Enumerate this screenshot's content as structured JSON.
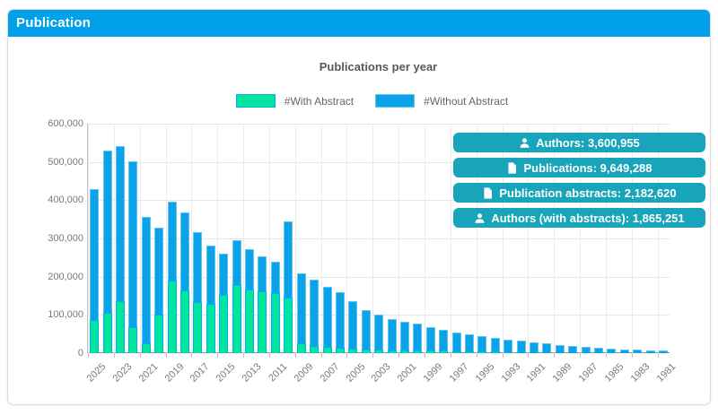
{
  "header": {
    "title": "Publication"
  },
  "chart_data": {
    "type": "bar",
    "stacked": true,
    "title": "Publications per year",
    "legend": [
      "#With Abstract",
      "#Without Abstract"
    ],
    "legend_position": "top",
    "grid": true,
    "ylim": [
      0,
      600000
    ],
    "ytick_step": 100000,
    "x_label_every": 2,
    "categories": [
      2025,
      2024,
      2023,
      2022,
      2021,
      2020,
      2019,
      2018,
      2017,
      2016,
      2015,
      2014,
      2013,
      2012,
      2011,
      2010,
      2009,
      2008,
      2007,
      2006,
      2005,
      2004,
      2003,
      2002,
      2001,
      2000,
      1999,
      1998,
      1997,
      1996,
      1995,
      1994,
      1993,
      1992,
      1991,
      1990,
      1989,
      1988,
      1987,
      1986,
      1985,
      1984,
      1983,
      1982,
      1981
    ],
    "series": [
      {
        "name": "#With Abstract",
        "color": "#00e5a0",
        "values": [
          86000,
          106000,
          135000,
          68000,
          25000,
          100000,
          190000,
          165000,
          134000,
          128000,
          152000,
          178000,
          166000,
          161000,
          156000,
          146000,
          25000,
          19000,
          17000,
          15000,
          11000,
          10000,
          9000,
          8000,
          8000,
          7000,
          6000,
          6000,
          5000,
          5000,
          4000,
          4000,
          3000,
          3000,
          3000,
          2000,
          2000,
          2000,
          1000,
          1000,
          1000,
          1000,
          1000,
          1000,
          1000
        ]
      },
      {
        "name": "#Without Abstract",
        "color": "#0aa2e8",
        "values": [
          342000,
          424000,
          406000,
          434000,
          331000,
          228000,
          207000,
          204000,
          183000,
          152000,
          108000,
          117000,
          105000,
          92000,
          82000,
          199000,
          182000,
          174000,
          158000,
          145000,
          124000,
          103000,
          91000,
          82000,
          76000,
          71000,
          62000,
          54000,
          49000,
          44000,
          40000,
          36000,
          33000,
          30000,
          26000,
          24000,
          19000,
          16000,
          15000,
          12000,
          10000,
          8000,
          7000,
          5000,
          4000
        ]
      }
    ]
  },
  "badges": [
    {
      "icon": "person-icon",
      "label": "Authors: 3,600,955"
    },
    {
      "icon": "document-icon",
      "label": "Publications: 9,649,288"
    },
    {
      "icon": "document-icon",
      "label": "Publication abstracts: 2,182,620"
    },
    {
      "icon": "person-icon",
      "label": "Authors (with abstracts): 1,865,251"
    }
  ],
  "colors": {
    "header": "#00a1e9",
    "bar_with_abstract": "#00e5a0",
    "bar_without_abstract": "#0aa2e8",
    "badge": "#18a4ba",
    "grid": "#e5e5e5",
    "axis_text": "#7a7a7a"
  }
}
